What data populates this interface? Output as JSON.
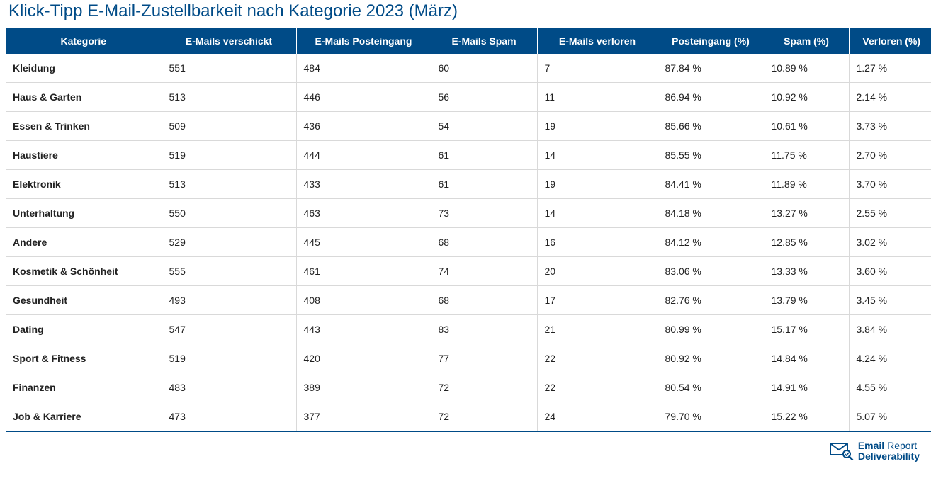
{
  "title": "Klick-Tipp E-Mail-Zustellbarkeit nach Kategorie 2023 (März)",
  "colors": {
    "header_bg": "#004b87",
    "header_text": "#ffffff",
    "title_text": "#004b87",
    "row_border": "#d9d9d9",
    "body_text": "#222222"
  },
  "columns": [
    "Kategorie",
    "E-Mails verschickt",
    "E-Mails Posteingang",
    "E-Mails Spam",
    "E-Mails verloren",
    "Posteingang (%)",
    "Spam (%)",
    "Verloren (%)"
  ],
  "rows": [
    {
      "kategorie": "Kleidung",
      "verschickt": "551",
      "posteingang": "484",
      "spam": "60",
      "verloren": "7",
      "posteingang_pct": "87.84 %",
      "spam_pct": "10.89 %",
      "verloren_pct": "1.27 %"
    },
    {
      "kategorie": "Haus & Garten",
      "verschickt": "513",
      "posteingang": "446",
      "spam": "56",
      "verloren": "11",
      "posteingang_pct": "86.94 %",
      "spam_pct": "10.92 %",
      "verloren_pct": "2.14 %"
    },
    {
      "kategorie": "Essen & Trinken",
      "verschickt": "509",
      "posteingang": "436",
      "spam": "54",
      "verloren": "19",
      "posteingang_pct": "85.66 %",
      "spam_pct": "10.61 %",
      "verloren_pct": "3.73 %"
    },
    {
      "kategorie": "Haustiere",
      "verschickt": "519",
      "posteingang": "444",
      "spam": "61",
      "verloren": "14",
      "posteingang_pct": "85.55 %",
      "spam_pct": "11.75 %",
      "verloren_pct": "2.70 %"
    },
    {
      "kategorie": "Elektronik",
      "verschickt": "513",
      "posteingang": "433",
      "spam": "61",
      "verloren": "19",
      "posteingang_pct": "84.41 %",
      "spam_pct": "11.89 %",
      "verloren_pct": "3.70 %"
    },
    {
      "kategorie": "Unterhaltung",
      "verschickt": "550",
      "posteingang": "463",
      "spam": "73",
      "verloren": "14",
      "posteingang_pct": "84.18 %",
      "spam_pct": "13.27 %",
      "verloren_pct": "2.55 %"
    },
    {
      "kategorie": "Andere",
      "verschickt": "529",
      "posteingang": "445",
      "spam": "68",
      "verloren": "16",
      "posteingang_pct": "84.12 %",
      "spam_pct": "12.85 %",
      "verloren_pct": "3.02 %"
    },
    {
      "kategorie": "Kosmetik & Schönheit",
      "verschickt": "555",
      "posteingang": "461",
      "spam": "74",
      "verloren": "20",
      "posteingang_pct": "83.06 %",
      "spam_pct": "13.33 %",
      "verloren_pct": "3.60 %"
    },
    {
      "kategorie": "Gesundheit",
      "verschickt": "493",
      "posteingang": "408",
      "spam": "68",
      "verloren": "17",
      "posteingang_pct": "82.76 %",
      "spam_pct": "13.79 %",
      "verloren_pct": "3.45 %"
    },
    {
      "kategorie": "Dating",
      "verschickt": "547",
      "posteingang": "443",
      "spam": "83",
      "verloren": "21",
      "posteingang_pct": "80.99 %",
      "spam_pct": "15.17 %",
      "verloren_pct": "3.84 %"
    },
    {
      "kategorie": "Sport & Fitness",
      "verschickt": "519",
      "posteingang": "420",
      "spam": "77",
      "verloren": "22",
      "posteingang_pct": "80.92 %",
      "spam_pct": "14.84 %",
      "verloren_pct": "4.24 %"
    },
    {
      "kategorie": "Finanzen",
      "verschickt": "483",
      "posteingang": "389",
      "spam": "72",
      "verloren": "22",
      "posteingang_pct": "80.54 %",
      "spam_pct": "14.91 %",
      "verloren_pct": "4.55 %"
    },
    {
      "kategorie": "Job & Karriere",
      "verschickt": "473",
      "posteingang": "377",
      "spam": "72",
      "verloren": "24",
      "posteingang_pct": "79.70 %",
      "spam_pct": "15.22 %",
      "verloren_pct": "5.07 %"
    }
  ],
  "footer_logo": {
    "line1_bold": "Email",
    "line1_light": "Report",
    "line2": "Deliverability",
    "icon_color": "#004b87"
  }
}
